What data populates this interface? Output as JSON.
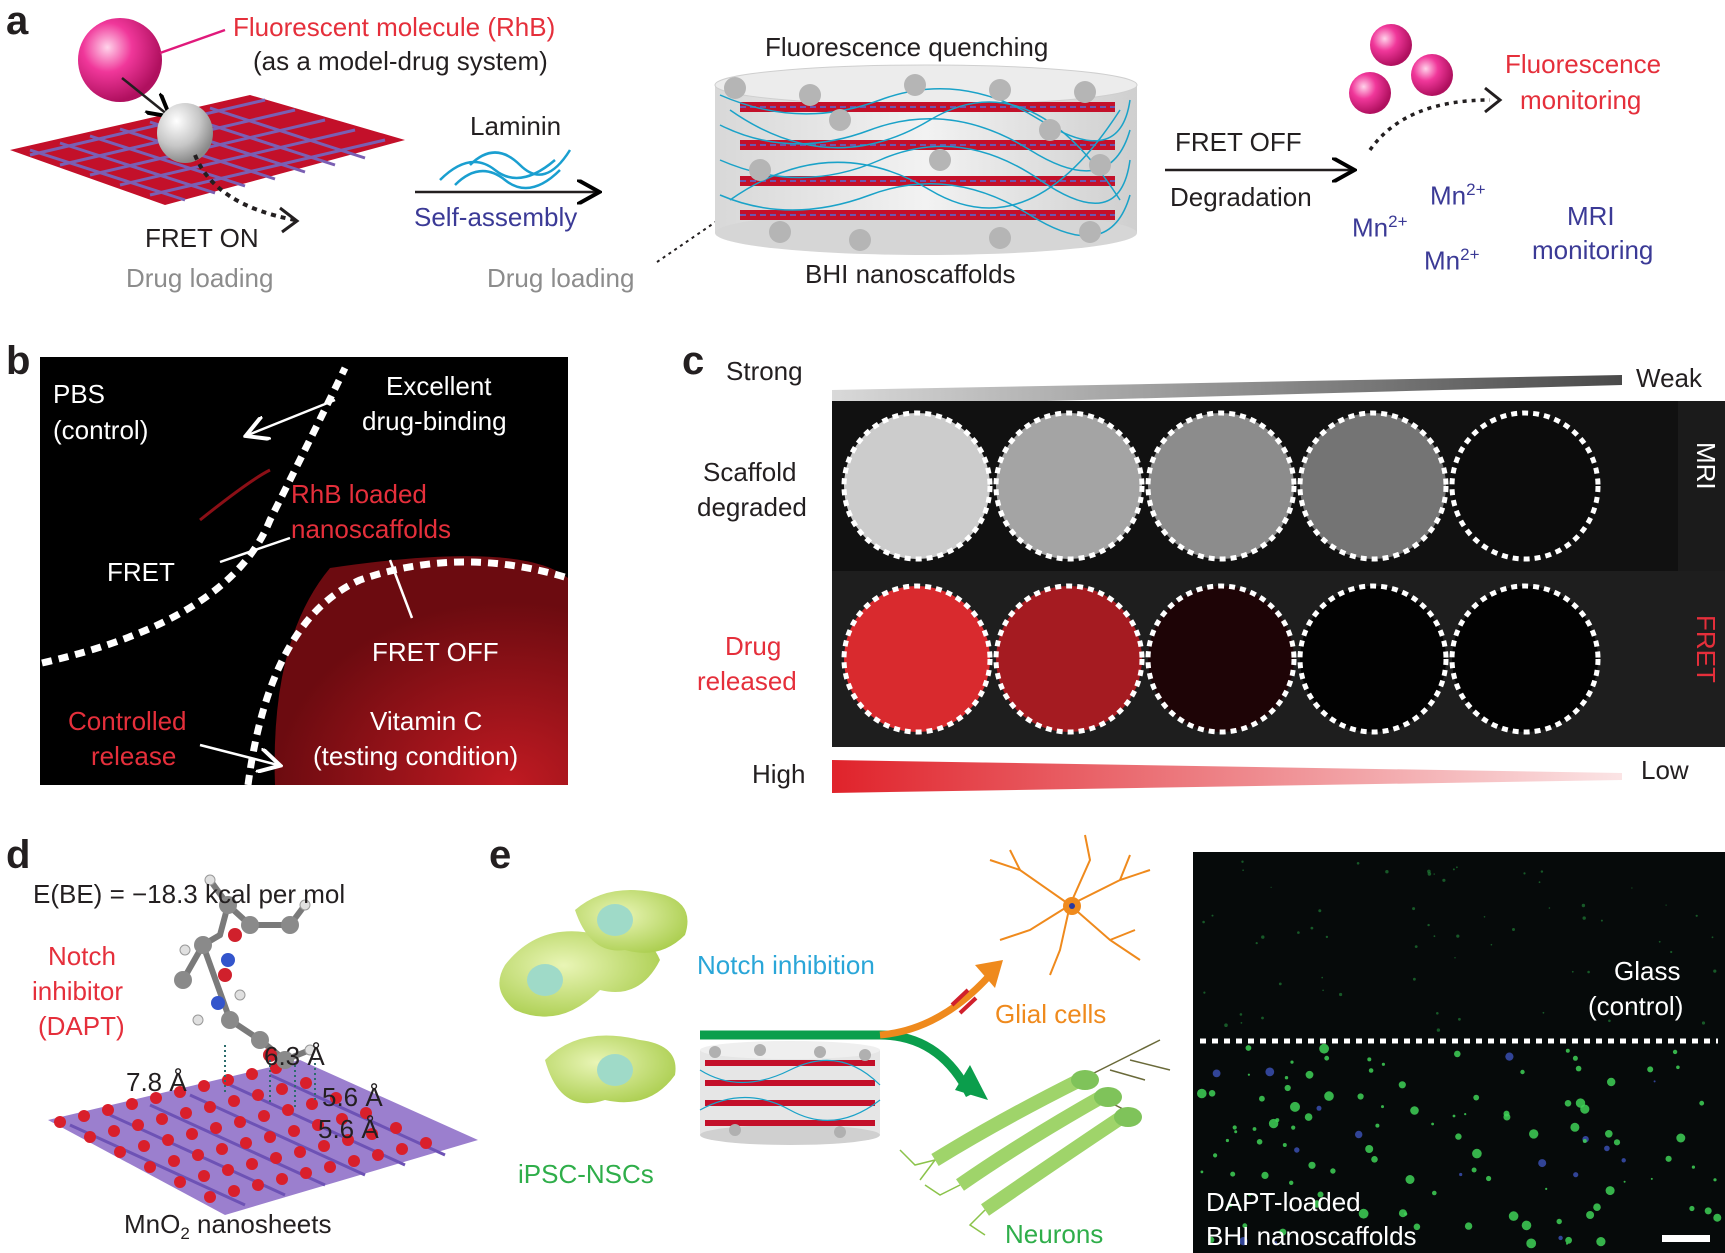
{
  "panel_a": {
    "label": "a",
    "molecule_label": "Fluorescent molecule  (RhB)",
    "molecule_sub": "(as a model-drug system)",
    "fret_on": "FRET ON",
    "drug_loading_left": "Drug loading",
    "laminin": "Laminin",
    "self_assembly": "Self-assembly",
    "drug_loading_mid": "Drug loading",
    "quenching": "Fluorescence quenching",
    "bhi": "BHI nanoscaffolds",
    "fret_off": "FRET OFF",
    "degradation": "Degradation",
    "fluorescence_monitoring_1": "Fluorescence",
    "fluorescence_monitoring_2": "monitoring",
    "mn_1": "Mn",
    "mn_2": "Mn",
    "mn_3": "Mn",
    "mn_charge": "2+",
    "mri_monitoring_1": "MRI",
    "mri_monitoring_2": "monitoring"
  },
  "panel_b": {
    "label": "b",
    "pbs_1": "PBS",
    "pbs_2": "(control)",
    "excellent_1": "Excellent",
    "excellent_2": "drug-binding",
    "rhb_1": "RhB loaded",
    "rhb_2": "nanoscaffolds",
    "fret": "FRET",
    "fret_off": "FRET  OFF",
    "controlled_1": "Controlled",
    "controlled_2": "release",
    "vitc_1": "Vitamin C",
    "vitc_2": "(testing condition)"
  },
  "panel_c": {
    "label": "c",
    "strong": "Strong",
    "weak": "Weak",
    "scaffold_1": "Scaffold",
    "scaffold_2": "degraded",
    "drug_1": "Drug",
    "drug_2": "released",
    "mri": "MRI",
    "fret": "FRET",
    "high": "High",
    "low": "Low",
    "mri_levels": [
      0.82,
      0.62,
      0.5,
      0.38,
      0.0
    ],
    "fret_colors": [
      "#d92a2e",
      "#a51b21",
      "#1e0406",
      "#020202",
      "#020202"
    ]
  },
  "panel_d": {
    "label": "d",
    "energy": "E(BE) = −18.3 kcal per mol",
    "notch_1": "Notch",
    "notch_2": "inhibitor",
    "notch_3": "(DAPT)",
    "d1": "7.8 Å",
    "d2": "6.3 Å",
    "d3": "5.6 Å",
    "d4": "5.6 Å",
    "mno2_a": "MnO",
    "mno2_sub": "2",
    "mno2_b": " nanosheets"
  },
  "panel_e": {
    "label": "e",
    "notch_inhibition": "Notch inhibition",
    "glial": "Glial cells",
    "neurons": "Neurons",
    "ipsc": "iPSC-NSCs",
    "glass_1": "Glass",
    "glass_2": "(control)",
    "dapt_1": "DAPT-loaded",
    "dapt_2": "BHI nanoscaffolds"
  },
  "colors": {
    "red": "#e52f3b",
    "blue": "#3b3a96",
    "cyan": "#2aa6d8",
    "green": "#2fae4a",
    "orange": "#ef8a1d",
    "magenta": "#e0197b"
  }
}
